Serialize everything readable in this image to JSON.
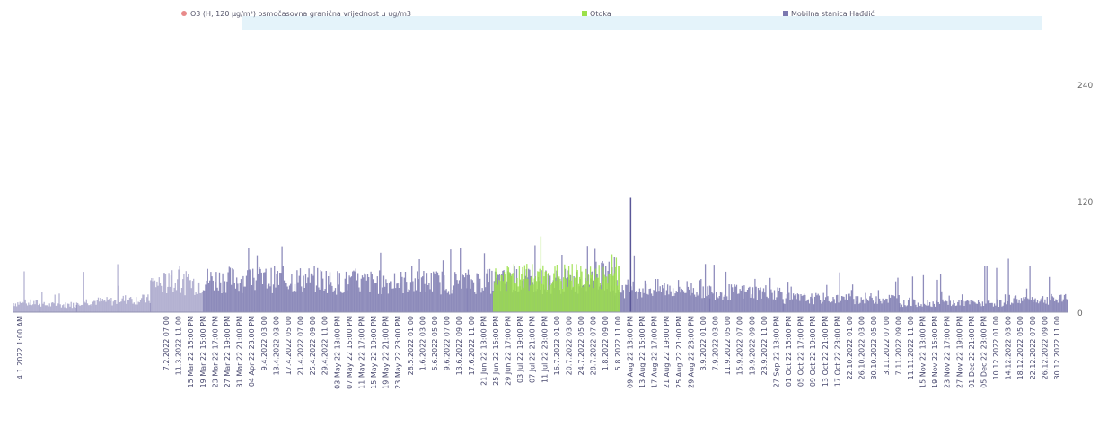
{
  "chart_data": {
    "type": "area",
    "title": "",
    "xlabel": "",
    "ylabel": "",
    "ylim": [
      0,
      240
    ],
    "yticks": [
      0,
      120,
      240
    ],
    "grid": false,
    "legend_position": "top",
    "legend": [
      {
        "label": "O3 (H, 120 µg/m³) osmočasovna granična vrijednost u ug/m3",
        "color": "#e88a8a"
      },
      {
        "label": "Otoka",
        "color": "#9be04a"
      },
      {
        "label": "Mobilna stanica Hađdić",
        "color": "#7b78b0"
      }
    ],
    "series": [
      {
        "name": "Mobilna stanica Hađdić",
        "color": "#7b78b0",
        "segments": [
          {
            "x_range": [
              0.0,
              0.025
            ],
            "mean": 10,
            "max": 45
          },
          {
            "x_range": [
              0.025,
              0.06
            ],
            "mean": 8,
            "max": 40
          },
          {
            "x_range": [
              0.06,
              0.1
            ],
            "mean": 12,
            "max": 52
          },
          {
            "x_range": [
              0.1,
              0.13
            ],
            "mean": 14,
            "max": 35
          },
          {
            "x_range": [
              0.13,
              0.18
            ],
            "mean": 32,
            "max": 58
          },
          {
            "x_range": [
              0.18,
              0.3
            ],
            "mean": 36,
            "max": 78
          },
          {
            "x_range": [
              0.3,
              0.43
            ],
            "mean": 33,
            "max": 70
          },
          {
            "x_range": [
              0.43,
              0.54
            ],
            "mean": 34,
            "max": 75
          },
          {
            "x_range": [
              0.54,
              0.57
            ],
            "mean": 40,
            "max": 70
          },
          {
            "x_range": [
              0.57,
              0.66
            ],
            "mean": 26,
            "max": 60
          },
          {
            "x_range": [
              0.66,
              0.73
            ],
            "mean": 22,
            "max": 50
          },
          {
            "x_range": [
              0.73,
              0.84
            ],
            "mean": 15,
            "max": 58
          },
          {
            "x_range": [
              0.84,
              0.94
            ],
            "mean": 10,
            "max": 50
          },
          {
            "x_range": [
              0.94,
              1.0
            ],
            "mean": 14,
            "max": 60
          }
        ]
      },
      {
        "name": "Otoka",
        "color": "#9be04a",
        "segments": [
          {
            "x_range": [
              0.455,
              0.575
            ],
            "mean": 38,
            "max": 82
          }
        ]
      }
    ],
    "spike_annotation": {
      "x_frac": 0.585,
      "y": 120
    },
    "x_tick_labels": [
      "4.1.2022 1:00 AM",
      "",
      "",
      "",
      "",
      "",
      "",
      "",
      "",
      "",
      "",
      "",
      "7.2.2022 07:00",
      "11.3.2022 11:00",
      "15 Mar 22 15:00 PM",
      "19 Mar 22 15:00 PM",
      "23 Mar 22 17:00 PM",
      "27 Mar 22 19:00 PM",
      "31 Mar 22 21:00 PM",
      "04 Apr 22 23:00 PM",
      "9.4.2022 03:00",
      "13.4.2022 03:00",
      "17.4.2022 05:00",
      "21.4.2022 07:00",
      "25.4.2022 09:00",
      "29.4.2022 11:00",
      "03 May 22 13:00 PM",
      "07 May 22 15:00 PM",
      "11 May 22 17:00 PM",
      "15 May 22 19:00 PM",
      "19 May 22 21:00 PM",
      "23 May 22 23:00 PM",
      "28.5.2022 01:00",
      "1.6.2022 03:00",
      "5.6.2022 05:00",
      "9.6.2022 07:00",
      "13.6.2022 09:00",
      "17.6.2022 11:00",
      "21 Jun 22 13:00 PM",
      "25 Jun 22 15:00 PM",
      "29 Jun 22 17:00 PM",
      "03 Jul 22 19:00 PM",
      "07 Jul 22 21:00 PM",
      "11 Jul 22 23:00 PM",
      "16.7.2022 01:00",
      "20.7.2022 03:00",
      "24.7.2022 05:00",
      "28.7.2022 07:00",
      "1.8.2022 09:00",
      "5.8.2022 11:00",
      "09 Aug 22 13:00 PM",
      "13 Aug 22 15:00 PM",
      "17 Aug 22 17:00 PM",
      "21 Aug 22 19:00 PM",
      "25 Aug 22 21:00 PM",
      "29 Aug 22 23:00 PM",
      "3.9.2022 01:00",
      "7.9.2022 03:00",
      "11.9.2022 05:00",
      "15.9.2022 07:00",
      "19.9.2022 09:00",
      "23.9.2022 11:00",
      "27 Sep 22 13:00 PM",
      "01 Oct 22 15:00 PM",
      "05 Oct 22 17:00 PM",
      "09 Oct 22 19:00 PM",
      "13 Oct 22 21:00 PM",
      "17 Oct 22 23:00 PM",
      "22.10.2022 01:00",
      "26.10.2022 03:00",
      "30.10.2022 05:00",
      "3.11.2022 07:00",
      "7.11.2022 09:00",
      "11.11.2022 11:00",
      "15 Nov 22 13:00 PM",
      "19 Nov 22 15:00 PM",
      "23 Nov 22 17:00 PM",
      "27 Nov 22 19:00 PM",
      "01 Dec 22 21:00 PM",
      "05 Dec 22 23:00 PM",
      "10.12.2022 01:00",
      "14.12.2022 03:00",
      "18.12.2022 05:00",
      "22.12.2022 07:00",
      "26.12.2022 09:00",
      "30.12.2022 11:00"
    ]
  }
}
